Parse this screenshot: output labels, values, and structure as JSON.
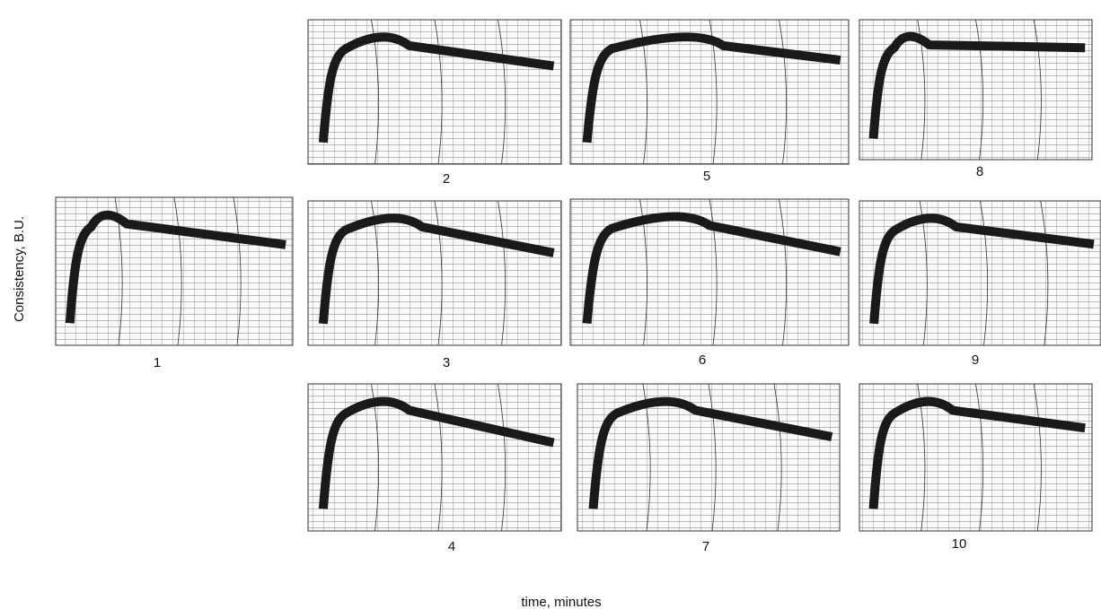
{
  "y_axis_label": "Consistency, B.U.",
  "x_axis_label": "time, minutes",
  "panels": [
    {
      "label": "1"
    },
    {
      "label": "2"
    },
    {
      "label": "3"
    },
    {
      "label": "4"
    },
    {
      "label": "5"
    },
    {
      "label": "6"
    },
    {
      "label": "7"
    },
    {
      "label": "8"
    },
    {
      "label": "9"
    },
    {
      "label": "10"
    }
  ]
}
